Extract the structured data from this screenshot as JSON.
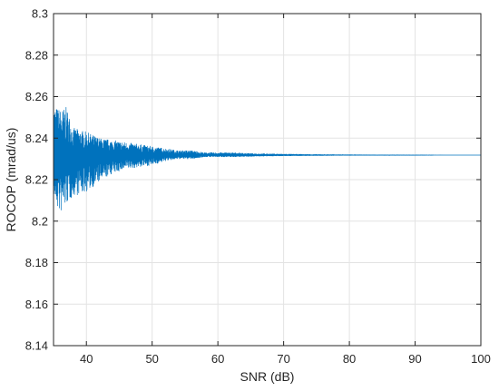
{
  "chart_data": {
    "type": "line",
    "title": "",
    "xlabel": "SNR (dB)",
    "ylabel": "ROCOP (mrad/us)",
    "xlim": [
      35,
      100
    ],
    "ylim": [
      8.14,
      8.3
    ],
    "xticks": [
      40,
      50,
      60,
      70,
      80,
      90,
      100
    ],
    "xtick_labels": [
      "40",
      "50",
      "60",
      "70",
      "80",
      "90",
      "100"
    ],
    "yticks": [
      8.14,
      8.16,
      8.18,
      8.2,
      8.22,
      8.24,
      8.26,
      8.28,
      8.3
    ],
    "ytick_labels": [
      "8.14",
      "8.16",
      "8.18",
      "8.2",
      "8.22",
      "8.24",
      "8.26",
      "8.28",
      "8.3"
    ],
    "grid": true,
    "legend": "none",
    "series": [
      {
        "color": "#0072BD",
        "x": [
          35,
          36,
          37,
          38,
          40,
          42,
          44,
          46,
          48,
          50,
          52,
          54,
          56,
          58,
          60,
          62,
          65,
          70,
          75,
          80,
          85,
          90,
          95,
          100
        ],
        "y_mean": [
          8.2318,
          8.2318,
          8.2318,
          8.2318,
          8.2318,
          8.2318,
          8.2318,
          8.2318,
          8.2318,
          8.2318,
          8.2318,
          8.2318,
          8.2318,
          8.2318,
          8.2318,
          8.2318,
          8.2318,
          8.2318,
          8.2318,
          8.2318,
          8.2318,
          8.2318,
          8.2318,
          8.2318
        ],
        "y_max": [
          8.256,
          8.254,
          8.255,
          8.245,
          8.243,
          8.24,
          8.239,
          8.238,
          8.237,
          8.236,
          8.235,
          8.234,
          8.234,
          8.233,
          8.233,
          8.233,
          8.2326,
          8.2323,
          8.2321,
          8.232,
          8.2319,
          8.2319,
          8.2318,
          8.2318
        ],
        "y_min": [
          8.21,
          8.203,
          8.208,
          8.212,
          8.214,
          8.219,
          8.223,
          8.225,
          8.226,
          8.227,
          8.229,
          8.23,
          8.23,
          8.231,
          8.231,
          8.231,
          8.2312,
          8.2315,
          8.2316,
          8.2317,
          8.2317,
          8.2317,
          8.2318,
          8.2318
        ]
      }
    ]
  }
}
